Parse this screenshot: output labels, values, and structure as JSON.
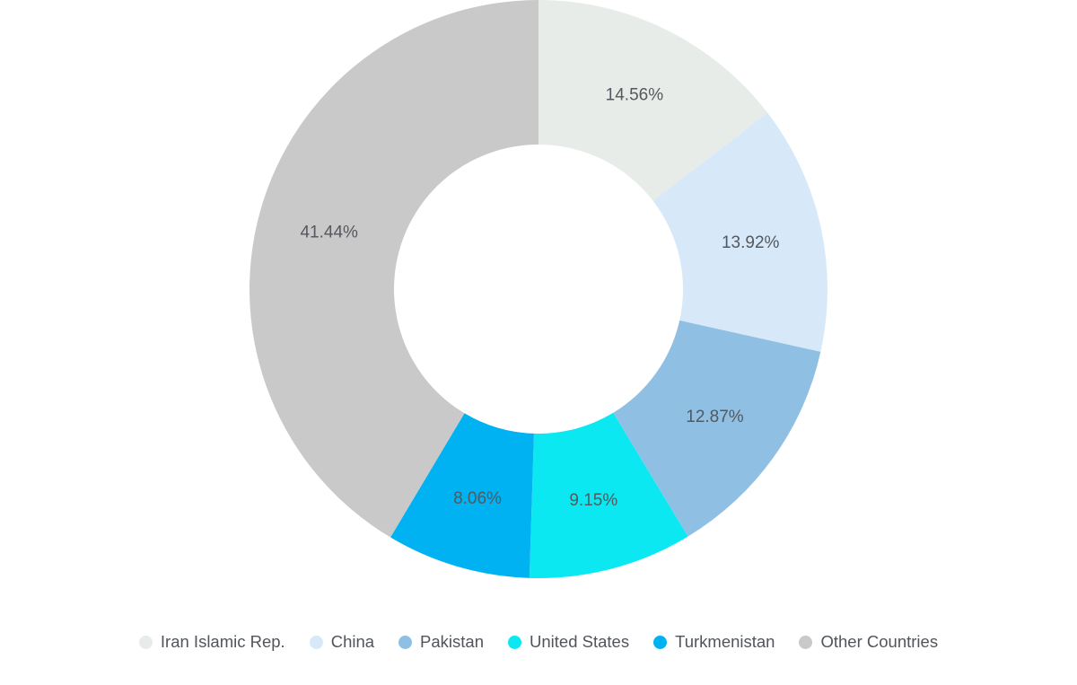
{
  "chart_data": {
    "type": "pie",
    "subtype": "donut",
    "title": "",
    "direction": "clockwise",
    "start_angle_deg": 0,
    "legend_position": "bottom",
    "background_color": "#ffffff",
    "label_color": "#55585d",
    "categories": [
      "Iran Islamic Rep.",
      "China",
      "Pakistan",
      "United States",
      "Turkmenistan",
      "Other Countries"
    ],
    "values": [
      14.56,
      13.92,
      12.87,
      9.15,
      8.06,
      41.44
    ],
    "value_labels": [
      "14.56%",
      "13.92%",
      "12.87%",
      "9.15%",
      "8.06%",
      "41.44%"
    ],
    "colors": [
      "#e8ece9",
      "#d7e9f8",
      "#8fc0e3",
      "#0ce8f2",
      "#00b2f1",
      "#c9c9c9"
    ]
  },
  "legend": {
    "items": [
      "Iran Islamic Rep.",
      "China",
      "Pakistan",
      "United States",
      "Turkmenistan",
      "Other Countries"
    ]
  }
}
